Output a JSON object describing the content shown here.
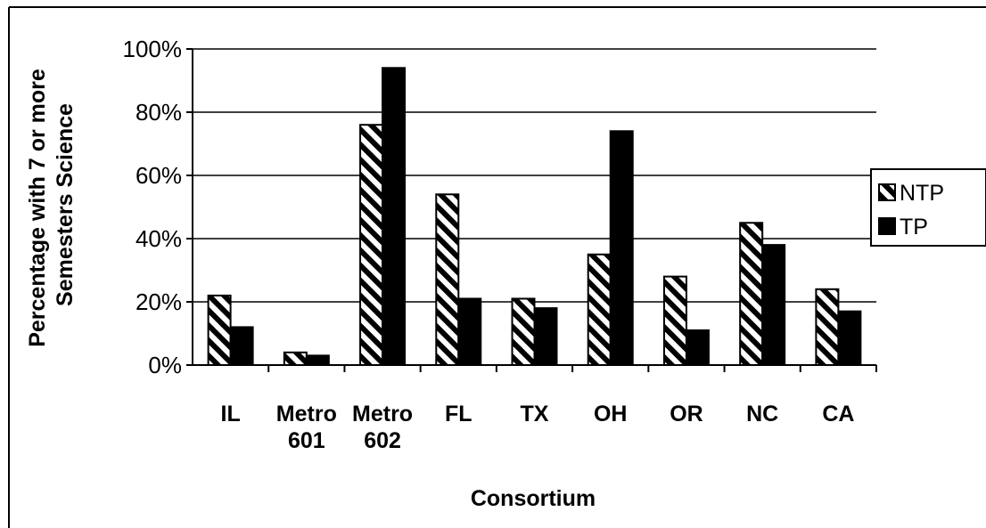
{
  "chart_data": {
    "type": "bar",
    "title": "",
    "xlabel": "Consortium",
    "ylabel_lines": [
      "Percentage with 7 or more",
      "Semesters Science"
    ],
    "categories": [
      [
        "IL"
      ],
      [
        "Metro",
        "601"
      ],
      [
        "Metro",
        "602"
      ],
      [
        "FL"
      ],
      [
        "TX"
      ],
      [
        "OH"
      ],
      [
        "OR"
      ],
      [
        "NC"
      ],
      [
        "CA"
      ]
    ],
    "series": [
      {
        "name": "NTP",
        "pattern": "diagonal-hatch",
        "values": [
          22,
          4,
          76,
          54,
          21,
          35,
          28,
          45,
          24
        ]
      },
      {
        "name": "TP",
        "pattern": "solid",
        "color": "#000000",
        "values": [
          12,
          3,
          94,
          21,
          18,
          74,
          11,
          38,
          17
        ]
      }
    ],
    "ylim": [
      0,
      100
    ],
    "yticks": [
      "0%",
      "20%",
      "40%",
      "60%",
      "80%",
      "100%"
    ],
    "grid": true,
    "legend_position": "right"
  }
}
